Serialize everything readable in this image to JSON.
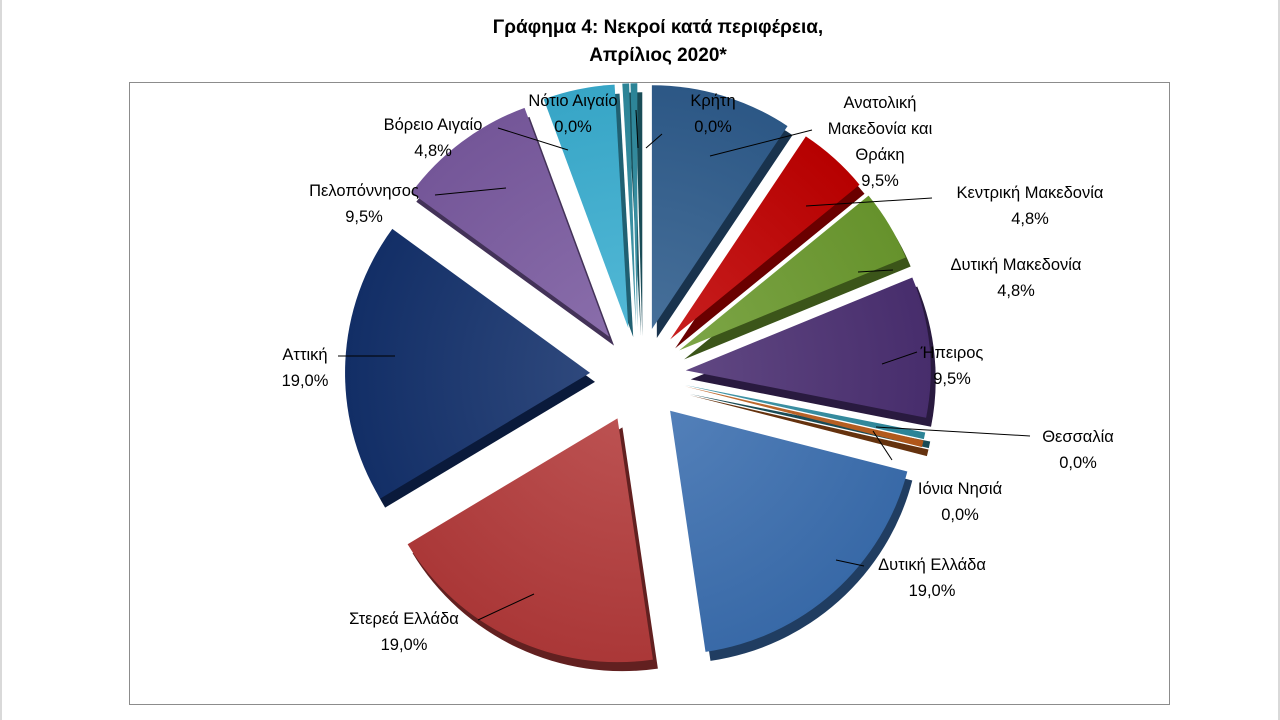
{
  "chart_data": {
    "type": "pie",
    "title_lines": [
      "Γράφημα 4: Νεκροί κατά περιφέρεια,",
      "Απρίλιος 2020*"
    ],
    "slices": [
      {
        "name": "Ανατολική Μακεδονία και Θράκη",
        "name_lines": [
          "Ανατολική",
          "Μακεδονία και",
          "Θράκη"
        ],
        "value": 9.5,
        "label": "9,5%",
        "color": "#2e5c8c"
      },
      {
        "name": "Κεντρική Μακεδονία",
        "name_lines": [
          "Κεντρική Μακεδονία"
        ],
        "value": 4.8,
        "label": "4,8%",
        "color": "#c00000"
      },
      {
        "name": "Δυτική Μακεδονία",
        "name_lines": [
          "Δυτική Μακεδονία"
        ],
        "value": 4.8,
        "label": "4,8%",
        "color": "#6b9a2e"
      },
      {
        "name": "Ήπειρος",
        "name_lines": [
          "Ήπειρος"
        ],
        "value": 9.5,
        "label": "9,5%",
        "color": "#4b2f72"
      },
      {
        "name": "Θεσσαλία",
        "name_lines": [
          "Θεσσαλία"
        ],
        "value": 0.0,
        "label": "0,0%",
        "color": "#2d8a9e"
      },
      {
        "name": "Ιόνια Νησιά",
        "name_lines": [
          "Ιόνια Νησιά"
        ],
        "value": 0.0,
        "label": "0,0%",
        "color": "#b85a1a"
      },
      {
        "name": "Δυτική Ελλάδα",
        "name_lines": [
          "Δυτική Ελλάδα"
        ],
        "value": 19.0,
        "label": "19,0%",
        "color": "#3b6fb0"
      },
      {
        "name": "Στερεά Ελλάδα",
        "name_lines": [
          "Στερεά Ελλάδα"
        ],
        "value": 19.0,
        "label": "19,0%",
        "color": "#b33a3a"
      },
      {
        "name": "Αττική",
        "name_lines": [
          "Αττική"
        ],
        "value": 19.0,
        "label": "19,0%",
        "color": "#13306b"
      },
      {
        "name": "Πελοπόννησος",
        "name_lines": [
          "Πελοπόννησος"
        ],
        "value": 9.5,
        "label": "9,5%",
        "color": "#7a5aa0"
      },
      {
        "name": "Βόρειο Αιγαίο",
        "name_lines": [
          "Βόρειο Αιγαίο"
        ],
        "value": 4.8,
        "label": "4,8%",
        "color": "#3aaed0"
      },
      {
        "name": "Νότιο Αιγαίο",
        "name_lines": [
          "Νότιο Αιγαίο"
        ],
        "value": 0.0,
        "label": "0,0%",
        "color": "#2d8a9e"
      },
      {
        "name": "Κρήτη",
        "name_lines": [
          "Κρήτη"
        ],
        "value": 0.0,
        "label": "0,0%",
        "color": "#2d8a9e"
      }
    ],
    "legend": "none",
    "style": "exploded-3d-pie"
  }
}
